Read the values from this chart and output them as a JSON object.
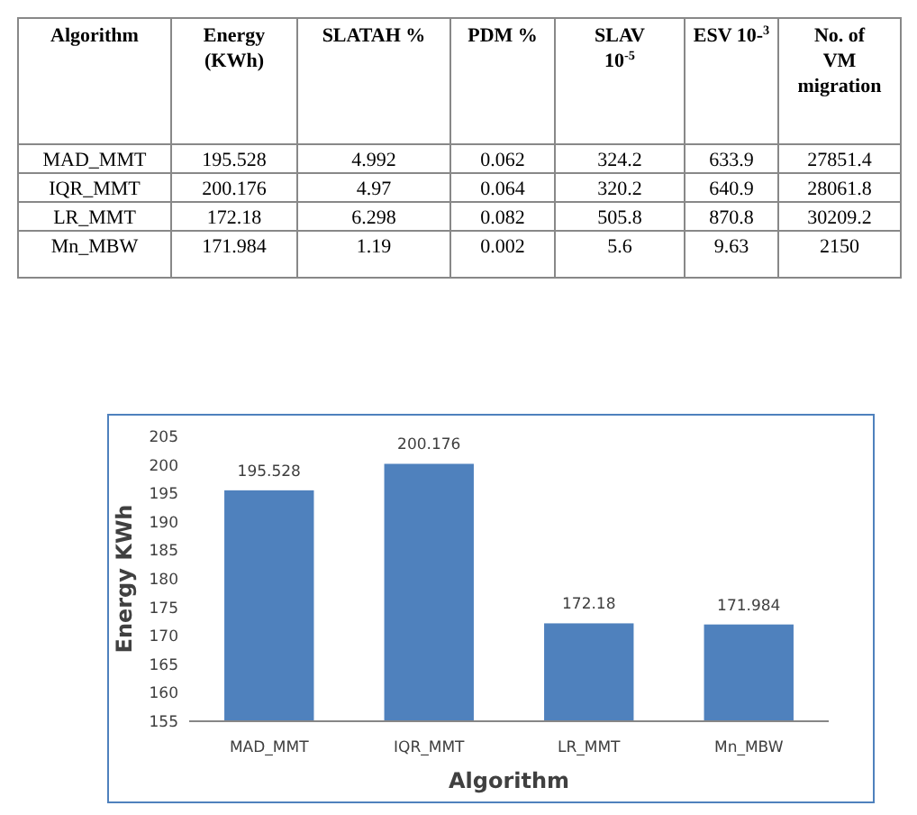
{
  "chart_data": [
    {
      "type": "heatmap",
      "ylabel": "Algorithm",
      "categories": [
        "Energy (KWh)",
        "SLATAH %",
        "PDM %",
        "SLAV 10$^{-5}$",
        "ESV 10-$^{3}$",
        "No. of VM migration"
      ],
      "y_categories": [
        "MAD_MMT",
        "IQR_MMT",
        "LR_MMT",
        "Mn_MBW"
      ],
      "cells": [
        [
          195.528,
          4.992,
          0.062,
          324.2,
          633.9,
          27851.4
        ],
        [
          200.176,
          4.97,
          0.064,
          320.2,
          640.9,
          28061.8
        ],
        [
          172.18,
          6.298,
          0.082,
          505.8,
          870.8,
          30209.2
        ],
        [
          171.984,
          1.19,
          0.002,
          5.6,
          9.63,
          2150
        ]
      ],
      "data_labels": true
    },
    {
      "type": "bar",
      "xlabel": "Algorithm",
      "ylabel": "Energy KWh",
      "categories": [
        "MAD_MMT",
        "IQR_MMT",
        "LR_MMT",
        "Mn_MBW"
      ],
      "values": [
        195.528,
        200.176,
        172.18,
        171.984
      ],
      "color": "#4f81bd",
      "ylim": [
        155,
        205
      ],
      "yticks": [
        155,
        160,
        165,
        170,
        175,
        180,
        185,
        190,
        195,
        200,
        205
      ],
      "data_labels": true
    }
  ]
}
